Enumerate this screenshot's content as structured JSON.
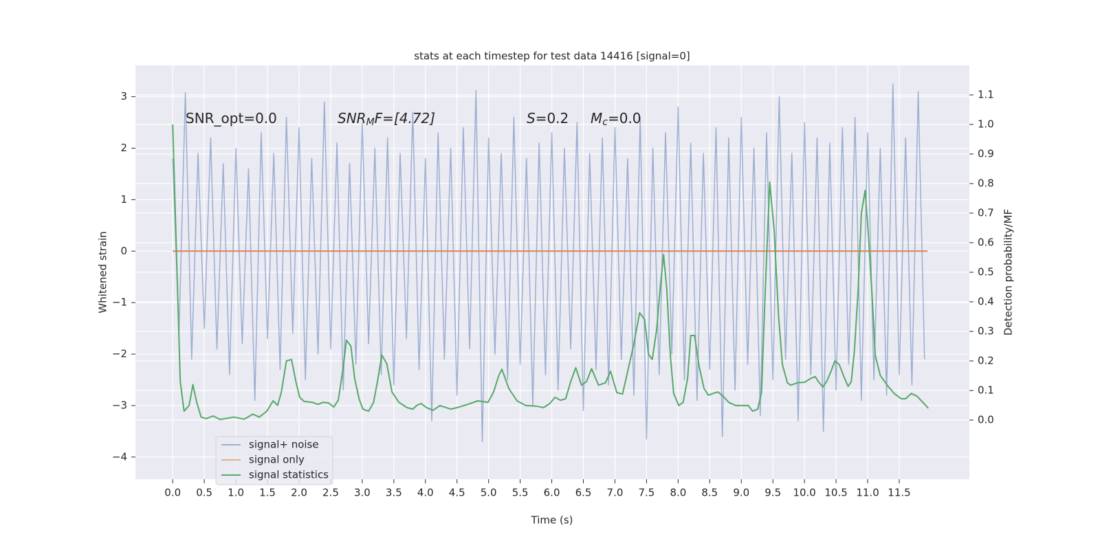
{
  "chart_data": {
    "type": "line",
    "title": "stats at each timestep for test data 14416 [signal=0]",
    "xlabel": "Time (s)",
    "ylabel": "Whitened strain",
    "y2label": "Detection probability/MF",
    "xlim": [
      -0.59,
      12.61
    ],
    "ylim": [
      -4.43,
      3.61
    ],
    "y2lim": [
      -0.2,
      1.2
    ],
    "xticks": [
      {
        "value": 0,
        "label": "0.0"
      },
      0.5,
      {
        "value": 1,
        "label": "1.0"
      },
      1.5,
      {
        "value": 2,
        "label": "2.0"
      },
      2.5,
      {
        "value": 3,
        "label": "3.0"
      },
      3.5,
      {
        "value": 4,
        "label": "4.0"
      },
      4.5,
      {
        "value": 5,
        "label": "5.0"
      },
      5.5,
      {
        "value": 6,
        "label": "6.0"
      },
      6.5,
      {
        "value": 7,
        "label": "7.0"
      },
      7.5,
      {
        "value": 8,
        "label": "8.0"
      },
      8.5,
      {
        "value": 9,
        "label": "9.0"
      },
      9.5,
      {
        "value": 10,
        "label": "10.0"
      },
      10.5,
      {
        "value": 11,
        "label": "11.0"
      },
      11.5
    ],
    "yticks": [
      {
        "value": -4,
        "label": "−4"
      },
      {
        "value": -3,
        "label": "−3"
      },
      {
        "value": -2,
        "label": "−2"
      },
      {
        "value": -1,
        "label": "−1"
      },
      0,
      1,
      2,
      3
    ],
    "y2ticks": [
      {
        "value": 0,
        "label": "0.0"
      },
      0.1,
      0.2,
      0.3,
      0.4,
      0.5,
      0.6,
      0.7,
      0.8,
      0.9,
      {
        "value": 1,
        "label": "1.0"
      },
      1.1
    ],
    "grid": true,
    "legend": "lower left",
    "annotations": [
      {
        "base": "SNR_opt=0.0"
      },
      {
        "base": "SNR",
        "sub": "M",
        "rest": "F=[4.72]"
      },
      {
        "base": "S",
        "rest": "=0.2"
      },
      {
        "base": "M",
        "sub": "c",
        "rest": "=0.0"
      }
    ],
    "series": [
      {
        "name": "signal+ noise",
        "color": "#4c72b0",
        "x": [
          0,
          0.1,
          0.2,
          0.3,
          0.4,
          0.5,
          0.6,
          0.7,
          0.8,
          0.9,
          1,
          1.1,
          1.2,
          1.3,
          1.4,
          1.5,
          1.6,
          1.7,
          1.8,
          1.9,
          2,
          2.1,
          2.2,
          2.3,
          2.4,
          2.5,
          2.6,
          2.7,
          2.8,
          2.9,
          3,
          3.1,
          3.2,
          3.3,
          3.4,
          3.5,
          3.6,
          3.7,
          3.8,
          3.9,
          4,
          4.1,
          4.2,
          4.3,
          4.4,
          4.5,
          4.6,
          4.7,
          4.8,
          4.9,
          5,
          5.1,
          5.2,
          5.3,
          5.4,
          5.5,
          5.6,
          5.7,
          5.8,
          5.9,
          6,
          6.1,
          6.2,
          6.3,
          6.4,
          6.5,
          6.6,
          6.7,
          6.8,
          6.9,
          7,
          7.1,
          7.2,
          7.3,
          7.4,
          7.5,
          7.6,
          7.7,
          7.8,
          7.9,
          8,
          8.1,
          8.2,
          8.3,
          8.4,
          8.5,
          8.6,
          8.7,
          8.8,
          8.9,
          9,
          9.1,
          9.2,
          9.3,
          9.4,
          9.5,
          9.6,
          9.7,
          9.8,
          9.9,
          10,
          10.1,
          10.2,
          10.3,
          10.4,
          10.5,
          10.6,
          10.7,
          10.8,
          10.9,
          11,
          11.1,
          11.2,
          11.3,
          11.4,
          11.5,
          11.6,
          11.7,
          11.8,
          11.9
        ],
        "values": [
          1.8,
          -1.6,
          3.08,
          -2.1,
          1.9,
          -1.5,
          2.2,
          -1.9,
          1.7,
          -2.4,
          2.0,
          -1.8,
          1.6,
          -2.9,
          2.3,
          -1.7,
          1.9,
          -2.3,
          2.6,
          -1.6,
          2.4,
          -2.5,
          1.8,
          -2.0,
          2.9,
          -1.9,
          2.1,
          -2.7,
          1.7,
          -2.2,
          2.5,
          -1.8,
          2.0,
          -2.4,
          2.2,
          -2.6,
          1.9,
          -1.7,
          2.7,
          -2.3,
          1.8,
          -3.3,
          2.3,
          -2.1,
          2.0,
          -2.8,
          2.4,
          -1.9,
          3.12,
          -3.7,
          2.2,
          -2.0,
          1.9,
          -2.5,
          2.6,
          -2.2,
          1.8,
          -3.0,
          2.1,
          -2.4,
          2.3,
          -2.7,
          2.0,
          -1.9,
          2.5,
          -3.1,
          1.9,
          -2.3,
          2.2,
          -2.6,
          2.4,
          -2.1,
          1.8,
          -2.8,
          2.6,
          -3.65,
          2.0,
          -2.4,
          2.3,
          -2.0,
          2.8,
          -2.5,
          2.1,
          -2.9,
          1.9,
          -2.3,
          2.4,
          -3.6,
          2.2,
          -2.7,
          2.6,
          -2.2,
          2.0,
          -3.2,
          2.3,
          -2.5,
          3.0,
          -2.1,
          1.9,
          -3.3,
          2.5,
          -2.4,
          2.2,
          -3.5,
          2.1,
          -2.7,
          2.4,
          -2.2,
          2.6,
          -2.9,
          2.3,
          -2.5,
          2.0,
          -2.8,
          3.25,
          -2.4,
          2.2,
          -2.6,
          3.1,
          -2.1
        ]
      },
      {
        "name": "signal only",
        "color": "#dd8452",
        "x": [
          0,
          11.95
        ],
        "values": [
          0,
          0
        ]
      },
      {
        "name": "signal statistics",
        "color": "#55a868",
        "axis": "y2",
        "x": [
          0,
          0.12,
          0.18,
          0.26,
          0.32,
          0.38,
          0.45,
          0.53,
          0.64,
          0.75,
          0.97,
          1.13,
          1.27,
          1.37,
          1.49,
          1.59,
          1.66,
          1.72,
          1.8,
          1.88,
          1.95,
          2.01,
          2.08,
          2.21,
          2.3,
          2.38,
          2.47,
          2.55,
          2.62,
          2.69,
          2.75,
          2.82,
          2.88,
          2.95,
          3.01,
          3.1,
          3.18,
          3.24,
          3.31,
          3.39,
          3.47,
          3.58,
          3.71,
          3.8,
          3.86,
          3.93,
          4.02,
          4.12,
          4.23,
          4.4,
          4.5,
          4.67,
          4.83,
          4.99,
          5.08,
          5.16,
          5.21,
          5.32,
          5.45,
          5.59,
          5.76,
          5.87,
          5.97,
          6.05,
          6.14,
          6.22,
          6.3,
          6.38,
          6.47,
          6.55,
          6.63,
          6.74,
          6.85,
          6.93,
          7.03,
          7.12,
          7.19,
          7.3,
          7.39,
          7.47,
          7.53,
          7.59,
          7.66,
          7.72,
          7.77,
          7.82,
          7.88,
          7.93,
          8.01,
          8.08,
          8.15,
          8.2,
          8.26,
          8.33,
          8.41,
          8.48,
          8.55,
          8.63,
          8.72,
          8.8,
          8.91,
          9.04,
          9.11,
          9.18,
          9.26,
          9.32,
          9.38,
          9.45,
          9.52,
          9.59,
          9.65,
          9.73,
          9.78,
          9.89,
          10.0,
          10.11,
          10.17,
          10.22,
          10.29,
          10.35,
          10.42,
          10.48,
          10.55,
          10.62,
          10.69,
          10.74,
          10.79,
          10.85,
          10.9,
          10.96,
          11.01,
          11.07,
          11.12,
          11.2,
          11.31,
          11.42,
          11.53,
          11.6,
          11.69,
          11.78,
          11.85,
          11.96
        ],
        "values": [
          1.0,
          0.13,
          0.03,
          0.05,
          0.12,
          0.06,
          0.01,
          0.005,
          0.014,
          0.002,
          0.01,
          0.003,
          0.02,
          0.01,
          0.03,
          0.065,
          0.05,
          0.095,
          0.2,
          0.205,
          0.13,
          0.077,
          0.063,
          0.06,
          0.053,
          0.06,
          0.058,
          0.044,
          0.067,
          0.165,
          0.27,
          0.25,
          0.14,
          0.072,
          0.037,
          0.03,
          0.06,
          0.13,
          0.22,
          0.19,
          0.095,
          0.06,
          0.042,
          0.037,
          0.049,
          0.056,
          0.042,
          0.033,
          0.049,
          0.037,
          0.042,
          0.053,
          0.065,
          0.06,
          0.095,
          0.15,
          0.172,
          0.107,
          0.065,
          0.049,
          0.047,
          0.042,
          0.056,
          0.077,
          0.067,
          0.072,
          0.13,
          0.177,
          0.118,
          0.13,
          0.174,
          0.118,
          0.126,
          0.165,
          0.093,
          0.088,
          0.153,
          0.258,
          0.363,
          0.34,
          0.223,
          0.205,
          0.305,
          0.456,
          0.56,
          0.444,
          0.21,
          0.09,
          0.049,
          0.06,
          0.142,
          0.286,
          0.286,
          0.184,
          0.107,
          0.084,
          0.09,
          0.095,
          0.079,
          0.06,
          0.049,
          0.049,
          0.049,
          0.03,
          0.037,
          0.095,
          0.444,
          0.805,
          0.642,
          0.351,
          0.188,
          0.126,
          0.118,
          0.126,
          0.128,
          0.142,
          0.147,
          0.13,
          0.112,
          0.13,
          0.165,
          0.2,
          0.188,
          0.149,
          0.114,
          0.13,
          0.235,
          0.444,
          0.7,
          0.777,
          0.63,
          0.421,
          0.219,
          0.151,
          0.118,
          0.09,
          0.072,
          0.072,
          0.09,
          0.081,
          0.065,
          0.04
        ]
      }
    ]
  }
}
